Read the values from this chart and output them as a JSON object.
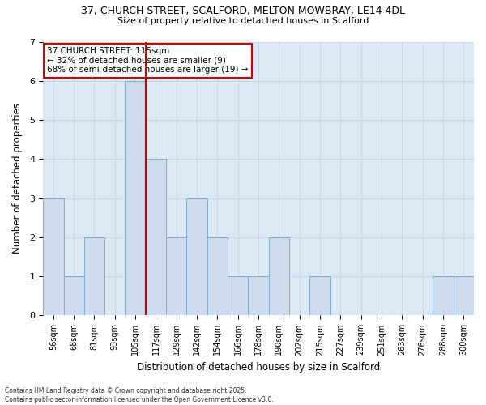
{
  "title_line1": "37, CHURCH STREET, SCALFORD, MELTON MOWBRAY, LE14 4DL",
  "title_line2": "Size of property relative to detached houses in Scalford",
  "xlabel": "Distribution of detached houses by size in Scalford",
  "ylabel": "Number of detached properties",
  "categories": [
    "56sqm",
    "68sqm",
    "81sqm",
    "93sqm",
    "105sqm",
    "117sqm",
    "129sqm",
    "142sqm",
    "154sqm",
    "166sqm",
    "178sqm",
    "190sqm",
    "202sqm",
    "215sqm",
    "227sqm",
    "239sqm",
    "251sqm",
    "263sqm",
    "276sqm",
    "288sqm",
    "300sqm"
  ],
  "values": [
    3,
    1,
    2,
    0,
    6,
    4,
    2,
    3,
    2,
    1,
    1,
    2,
    0,
    1,
    0,
    0,
    0,
    0,
    0,
    1,
    1
  ],
  "bar_color": "#ccdcec",
  "bar_edge_color": "#7aaed0",
  "highlight_index": 4,
  "highlight_line_color": "#cc0000",
  "annotation_text": "37 CHURCH STREET: 115sqm\n← 32% of detached houses are smaller (9)\n68% of semi-detached houses are larger (19) →",
  "annotation_box_color": "#ffffff",
  "annotation_box_edge": "#cc0000",
  "ylim": [
    0,
    7
  ],
  "yticks": [
    0,
    1,
    2,
    3,
    4,
    5,
    6,
    7
  ],
  "grid_color": "#c8d8e8",
  "background_color": "#dce8f4",
  "footer": "Contains HM Land Registry data © Crown copyright and database right 2025.\nContains public sector information licensed under the Open Government Licence v3.0."
}
